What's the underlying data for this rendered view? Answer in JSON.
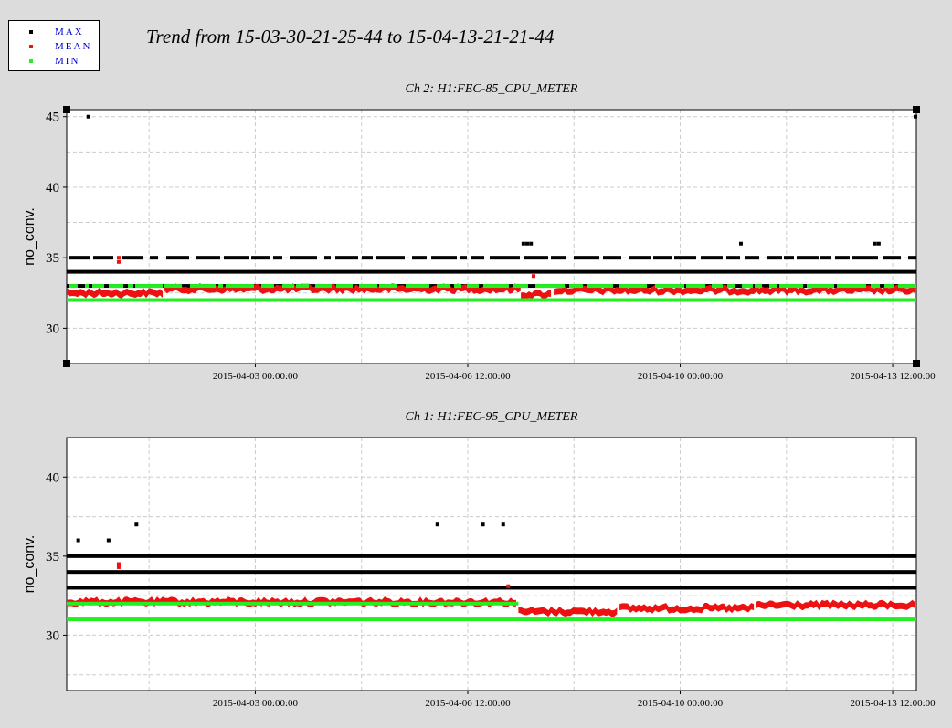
{
  "title": "Trend from 15-03-30-21-25-44 to 15-04-13-21-21-44",
  "legend": [
    {
      "label": "MAX",
      "color": "#000000"
    },
    {
      "label": "MEAN",
      "color": "#ee1111"
    },
    {
      "label": "MIN",
      "color": "#22ee22"
    }
  ],
  "chart_data": [
    {
      "type": "scatter",
      "title": "Ch 2: H1:FEC-85_CPU_METER",
      "ylabel": "no_conv.",
      "xlabel": "",
      "ylim": [
        27.5,
        45.5
      ],
      "yticks": [
        30,
        35,
        40,
        45
      ],
      "x_ticks": [
        "2015-04-03 00:00:00",
        "2015-04-06 12:00:00",
        "2015-04-10 00:00:00",
        "2015-04-13 12:00:00"
      ],
      "x_range": [
        "2015-03-30 21:25:44",
        "2015-04-13 21:21:44"
      ],
      "grid": true,
      "series": [
        {
          "name": "MAX",
          "color": "#000000",
          "levels": [
            {
              "y": 35,
              "coverage": "sparse"
            },
            {
              "y": 34,
              "coverage": "continuous"
            },
            {
              "y": 33,
              "coverage": "continuous"
            }
          ],
          "outliers": [
            {
              "x": "2015-04-07 10:00",
              "y": 36
            },
            {
              "x": "2015-04-07 11:30",
              "y": 36
            },
            {
              "x": "2015-04-07 13:00",
              "y": 36
            },
            {
              "x": "2015-04-11 00:00",
              "y": 36
            },
            {
              "x": "2015-04-13 05:00",
              "y": 36
            },
            {
              "x": "2015-04-13 06:30",
              "y": 36
            },
            {
              "x": "2015-03-31 06:00",
              "y": 45
            },
            {
              "x": "2015-04-13 21:00",
              "y": 45
            }
          ]
        },
        {
          "name": "MEAN",
          "color": "#ee1111",
          "segments": [
            {
              "x": [
                "2015-03-30 21:25",
                "2015-04-01 12:00"
              ],
              "y": 32.5
            },
            {
              "x": [
                "2015-04-01 12:00",
                "2015-04-07 09:00"
              ],
              "y": 32.8
            },
            {
              "x": [
                "2015-04-07 09:00",
                "2015-04-07 22:00"
              ],
              "y": 32.4
            },
            {
              "x": [
                "2015-04-07 22:00",
                "2015-04-13 21:21"
              ],
              "y": 32.7
            }
          ],
          "outliers": [
            {
              "x": "2015-03-31 18:00",
              "y": 35
            },
            {
              "x": "2015-03-31 18:00",
              "y": 34.7
            },
            {
              "x": "2015-04-07 14:00",
              "y": 33.7
            }
          ]
        },
        {
          "name": "MIN",
          "color": "#22ee22",
          "levels": [
            {
              "y": 32,
              "coverage": "continuous"
            },
            {
              "y": 33,
              "coverage": "sparse"
            }
          ]
        }
      ]
    },
    {
      "type": "scatter",
      "title": "Ch 1: H1:FEC-95_CPU_METER",
      "ylabel": "no_conv.",
      "xlabel": "",
      "ylim": [
        26.5,
        42.5
      ],
      "yticks": [
        30,
        35,
        40
      ],
      "x_ticks": [
        "2015-04-03 00:00:00",
        "2015-04-06 12:00:00",
        "2015-04-10 00:00:00",
        "2015-04-13 12:00:00"
      ],
      "x_range": [
        "2015-03-30 21:25:44",
        "2015-04-13 21:21:44"
      ],
      "grid": true,
      "series": [
        {
          "name": "MAX",
          "color": "#000000",
          "levels": [
            {
              "y": 35,
              "coverage": "continuous"
            },
            {
              "y": 34,
              "coverage": "continuous"
            },
            {
              "y": 33,
              "coverage": "continuous"
            }
          ],
          "outliers": [
            {
              "x": "2015-03-31 02:00",
              "y": 36
            },
            {
              "x": "2015-03-31 14:00",
              "y": 36
            },
            {
              "x": "2015-04-01 01:00",
              "y": 37
            },
            {
              "x": "2015-04-06 00:00",
              "y": 37
            },
            {
              "x": "2015-04-06 18:00",
              "y": 37
            },
            {
              "x": "2015-04-07 02:00",
              "y": 37
            }
          ]
        },
        {
          "name": "MEAN",
          "color": "#ee1111",
          "segments": [
            {
              "x": [
                "2015-03-30 21:25",
                "2015-04-07 08:00"
              ],
              "y": 32.1
            },
            {
              "x": [
                "2015-04-07 08:00",
                "2015-04-09 00:00"
              ],
              "y": 31.5
            },
            {
              "x": [
                "2015-04-09 00:00",
                "2015-04-11 06:00"
              ],
              "y": 31.7
            },
            {
              "x": [
                "2015-04-11 06:00",
                "2015-04-13 21:21"
              ],
              "y": 31.9
            }
          ],
          "outliers": [
            {
              "x": "2015-03-31 18:00",
              "y": 34.5
            },
            {
              "x": "2015-03-31 18:00",
              "y": 34.3
            },
            {
              "x": "2015-04-07 04:00",
              "y": 33.1
            }
          ]
        },
        {
          "name": "MIN",
          "color": "#22ee22",
          "levels": [
            {
              "y": 32,
              "coverage": "continuous-until-2015-04-07"
            },
            {
              "y": 31,
              "coverage": "continuous"
            }
          ]
        }
      ]
    }
  ]
}
